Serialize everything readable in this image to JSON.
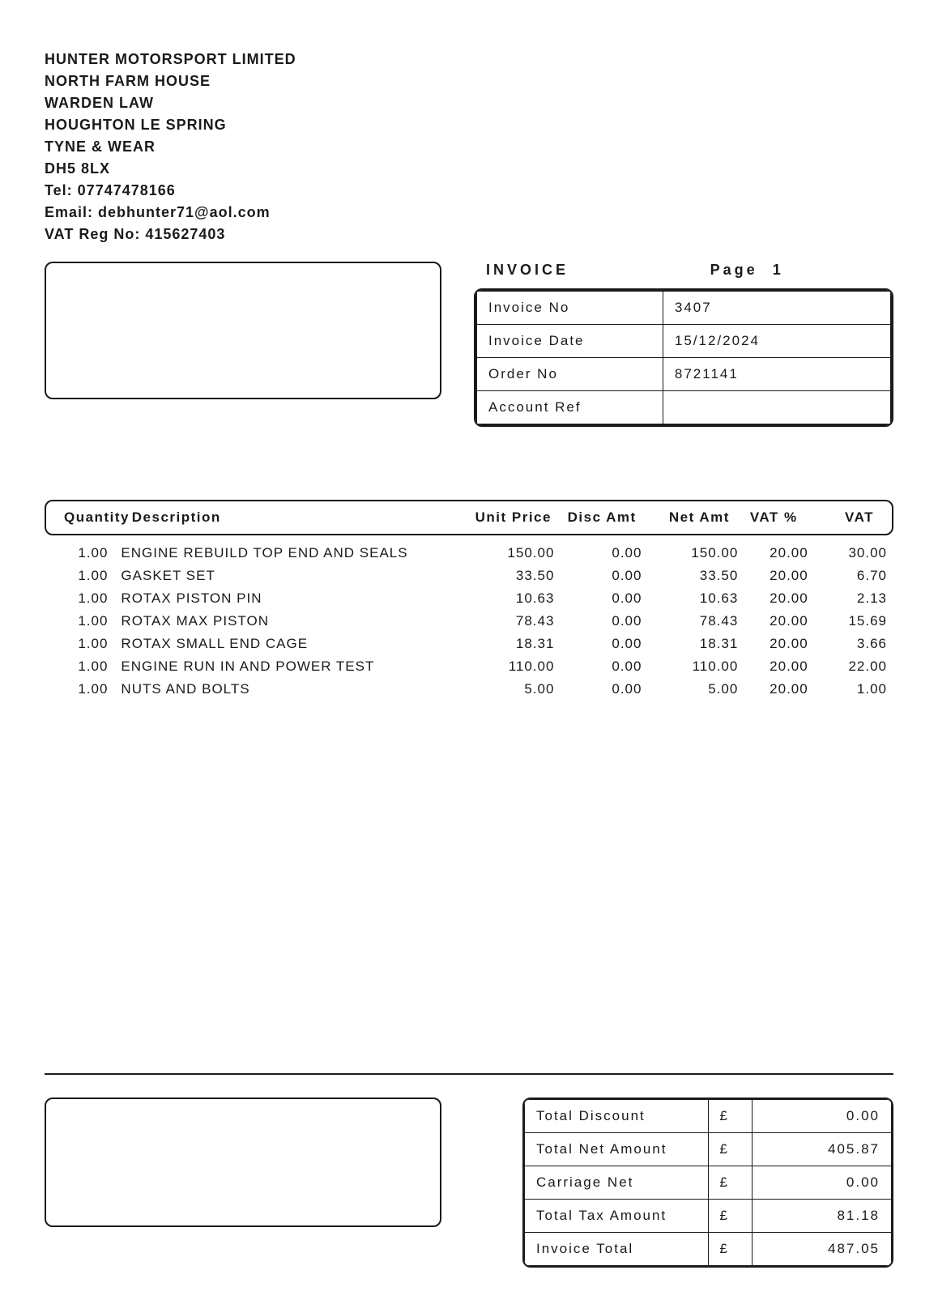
{
  "company": {
    "name": "HUNTER MOTORSPORT LIMITED",
    "addr1": "NORTH FARM HOUSE",
    "addr2": "WARDEN LAW",
    "addr3": "HOUGHTON LE SPRING",
    "addr4": "TYNE & WEAR",
    "postcode": "DH5 8LX",
    "tel_label": "Tel: ",
    "tel": "07747478166",
    "email_label": "Email: ",
    "email": "debhunter71@aol.com",
    "vat_label": "VAT Reg No: ",
    "vat_reg": "415627403"
  },
  "header": {
    "invoice_title": "INVOICE",
    "page_label": "Page",
    "page_num": "1"
  },
  "meta": {
    "labels": {
      "invoice_no": "Invoice No",
      "invoice_date": "Invoice Date",
      "order_no": "Order No",
      "account_ref": "Account Ref"
    },
    "values": {
      "invoice_no": "3407",
      "invoice_date": "15/12/2024",
      "order_no": "8721141",
      "account_ref": ""
    }
  },
  "columns": {
    "qty": "Quantity",
    "desc": "Description",
    "unit": "Unit Price",
    "disc": "Disc Amt",
    "net": "Net Amt",
    "vatp": "VAT %",
    "vat": "VAT"
  },
  "lines": [
    {
      "qty": "1.00",
      "desc": "ENGINE REBUILD TOP END AND SEALS",
      "unit": "150.00",
      "disc": "0.00",
      "net": "150.00",
      "vatp": "20.00",
      "vat": "30.00"
    },
    {
      "qty": "1.00",
      "desc": "GASKET SET",
      "unit": "33.50",
      "disc": "0.00",
      "net": "33.50",
      "vatp": "20.00",
      "vat": "6.70"
    },
    {
      "qty": "1.00",
      "desc": "ROTAX PISTON PIN",
      "unit": "10.63",
      "disc": "0.00",
      "net": "10.63",
      "vatp": "20.00",
      "vat": "2.13"
    },
    {
      "qty": "1.00",
      "desc": "ROTAX MAX PISTON",
      "unit": "78.43",
      "disc": "0.00",
      "net": "78.43",
      "vatp": "20.00",
      "vat": "15.69"
    },
    {
      "qty": "1.00",
      "desc": "ROTAX SMALL END CAGE",
      "unit": "18.31",
      "disc": "0.00",
      "net": "18.31",
      "vatp": "20.00",
      "vat": "3.66"
    },
    {
      "qty": "1.00",
      "desc": "ENGINE RUN IN AND POWER TEST",
      "unit": "110.00",
      "disc": "0.00",
      "net": "110.00",
      "vatp": "20.00",
      "vat": "22.00"
    },
    {
      "qty": "1.00",
      "desc": "NUTS AND BOLTS",
      "unit": "5.00",
      "disc": "0.00",
      "net": "5.00",
      "vatp": "20.00",
      "vat": "1.00"
    }
  ],
  "totals": {
    "currency": "£",
    "rows": [
      {
        "label": "Total Discount",
        "value": "0.00"
      },
      {
        "label": "Total Net Amount",
        "value": "405.87"
      },
      {
        "label": "Carriage Net",
        "value": "0.00"
      },
      {
        "label": "Total Tax Amount",
        "value": "81.18"
      },
      {
        "label": "Invoice Total",
        "value": "487.05"
      }
    ]
  }
}
